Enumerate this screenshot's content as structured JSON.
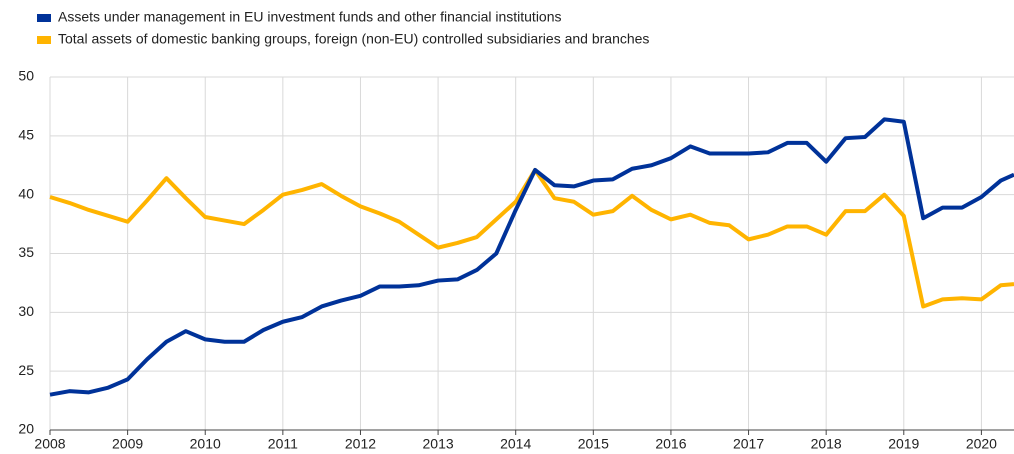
{
  "chart_data": {
    "type": "line",
    "x": [
      2008,
      2008.25,
      2008.5,
      2008.75,
      2009,
      2009.25,
      2009.5,
      2009.75,
      2010,
      2010.25,
      2010.5,
      2010.75,
      2011,
      2011.25,
      2011.5,
      2011.75,
      2012,
      2012.25,
      2012.5,
      2012.75,
      2013,
      2013.25,
      2013.5,
      2013.75,
      2014,
      2014.25,
      2014.5,
      2014.75,
      2015,
      2015.25,
      2015.5,
      2015.75,
      2016,
      2016.25,
      2016.5,
      2016.75,
      2017,
      2017.25,
      2017.5,
      2017.75,
      2018,
      2018.25,
      2018.5,
      2018.75,
      2019,
      2019.25,
      2019.5,
      2019.75,
      2020,
      2020.25,
      2020.42
    ],
    "series": [
      {
        "name": "Assets under management in EU investment funds and other financial institutions",
        "color": "#003299",
        "values": [
          23.0,
          23.3,
          23.2,
          23.6,
          24.3,
          26.0,
          27.5,
          28.4,
          27.7,
          27.5,
          27.5,
          28.5,
          29.2,
          29.6,
          30.5,
          31.0,
          31.4,
          32.2,
          32.2,
          32.3,
          32.7,
          32.8,
          33.6,
          35.0,
          38.7,
          42.1,
          40.8,
          40.7,
          41.2,
          41.3,
          42.2,
          42.5,
          43.1,
          44.1,
          43.5,
          43.5,
          43.5,
          43.6,
          44.4,
          44.4,
          42.8,
          44.8,
          44.9,
          46.4,
          46.2,
          38.0,
          38.9,
          38.9,
          39.8,
          41.2,
          41.7
        ]
      },
      {
        "name": "Total assets of domestic banking groups, foreign (non-EU) controlled subsidiaries and branches",
        "color": "#FFB400",
        "values": [
          39.8,
          39.3,
          38.7,
          38.2,
          37.7,
          39.5,
          41.4,
          39.7,
          38.1,
          37.8,
          37.5,
          38.7,
          40.0,
          40.4,
          40.9,
          39.9,
          39.0,
          38.4,
          37.7,
          36.6,
          35.5,
          35.9,
          36.4,
          37.9,
          39.4,
          42.1,
          39.7,
          39.4,
          38.3,
          38.6,
          39.9,
          38.7,
          37.9,
          38.3,
          37.6,
          37.4,
          36.2,
          36.6,
          37.3,
          37.3,
          36.6,
          38.6,
          38.6,
          40.0,
          38.2,
          30.5,
          31.1,
          31.2,
          31.1,
          32.3,
          32.4
        ]
      }
    ],
    "xlim": [
      2008,
      2020.42
    ],
    "xticks": [
      2008,
      2009,
      2010,
      2011,
      2012,
      2013,
      2014,
      2015,
      2016,
      2017,
      2018,
      2019,
      2020
    ],
    "ylim": [
      20,
      50
    ],
    "yticks": [
      20,
      25,
      30,
      35,
      40,
      45,
      50
    ],
    "grid": true,
    "legend": "top-left"
  }
}
